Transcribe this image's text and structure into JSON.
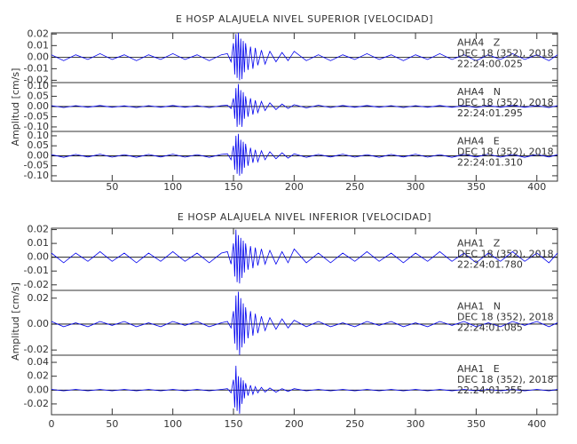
{
  "chart_data": [
    {
      "type": "line",
      "title": "E HOSP ALAJUELA NIVEL SUPERIOR [VELOCIDAD]",
      "y_label": "Amplitud [cm/s]",
      "xlim": [
        0,
        417
      ],
      "xticks": [
        50,
        100,
        150,
        200,
        250,
        300,
        350,
        400
      ],
      "x": [
        0,
        10,
        20,
        30,
        40,
        50,
        60,
        70,
        80,
        90,
        100,
        110,
        120,
        130,
        140,
        145,
        148,
        150,
        151,
        152,
        153,
        154,
        155,
        156,
        157,
        158,
        159,
        160,
        162,
        164,
        166,
        168,
        170,
        173,
        176,
        180,
        185,
        190,
        195,
        200,
        210,
        220,
        230,
        240,
        250,
        260,
        270,
        280,
        290,
        300,
        310,
        320,
        330,
        340,
        350,
        360,
        370,
        380,
        390,
        400,
        410,
        417
      ],
      "series": [
        {
          "name": "AHA4   Z",
          "date": "DEC 18 (352), 2018",
          "time": "22:24:00.025",
          "color": "#0000ee",
          "ylim": [
            -0.022,
            0.021
          ],
          "yticks": [
            0.02,
            0.01,
            {
              "value": 0,
              "label": "0.00"
            },
            -0.01,
            -0.02
          ],
          "values": [
            0.002,
            -0.003,
            0.002,
            -0.002,
            0.003,
            -0.002,
            0.002,
            -0.003,
            0.002,
            -0.002,
            0.003,
            -0.002,
            0.002,
            -0.003,
            0.002,
            0.003,
            -0.004,
            0.012,
            -0.015,
            0.02,
            -0.018,
            0.021,
            -0.02,
            0.016,
            -0.019,
            0.014,
            -0.013,
            0.012,
            -0.011,
            0.009,
            -0.01,
            0.008,
            -0.007,
            0.006,
            -0.006,
            0.005,
            -0.004,
            0.004,
            -0.003,
            0.005,
            -0.003,
            0.002,
            -0.003,
            0.002,
            -0.002,
            0.003,
            -0.002,
            0.002,
            -0.003,
            0.002,
            -0.002,
            0.003,
            -0.002,
            0.002,
            -0.003,
            0.002,
            -0.002,
            0.003,
            -0.002,
            0.002,
            -0.003,
            0.002
          ]
        },
        {
          "name": "AHA4   N",
          "date": "DEC 18 (352), 2018",
          "time": "22:24:01.295",
          "color": "#0000ee",
          "ylim": [
            -0.122,
            0.117
          ],
          "yticks": [
            {
              "value": 0.1,
              "label": "0.10"
            },
            0.05,
            {
              "value": 0,
              "label": "0.00"
            },
            -0.05,
            {
              "value": -0.1,
              "label": "-0.10"
            }
          ],
          "values": [
            0.004,
            -0.005,
            0.004,
            -0.004,
            0.005,
            -0.004,
            0.003,
            -0.005,
            0.004,
            -0.004,
            0.005,
            -0.004,
            0.004,
            -0.005,
            0.004,
            0.006,
            -0.01,
            0.04,
            -0.06,
            0.09,
            -0.1,
            0.11,
            -0.09,
            0.08,
            -0.1,
            0.07,
            -0.06,
            0.05,
            -0.05,
            0.04,
            -0.04,
            0.03,
            -0.03,
            0.025,
            -0.02,
            0.018,
            -0.015,
            0.012,
            -0.01,
            0.009,
            -0.007,
            0.006,
            -0.005,
            0.005,
            -0.004,
            0.005,
            -0.004,
            0.004,
            -0.005,
            0.004,
            -0.004,
            0.005,
            -0.004,
            0.004,
            -0.005,
            0.004,
            -0.004,
            0.005,
            -0.004,
            0.004,
            -0.005,
            0.004
          ]
        },
        {
          "name": "AHA4   E",
          "date": "DEC 18 (352), 2018",
          "time": "22:24:01.310",
          "color": "#0000ee",
          "ylim": [
            -0.127,
            0.122
          ],
          "yticks": [
            {
              "value": 0.1,
              "label": "0.10"
            },
            0.05,
            {
              "value": 0,
              "label": "0.00"
            },
            -0.05,
            {
              "value": -0.1,
              "label": "-0.10"
            }
          ],
          "values": [
            0.006,
            -0.008,
            0.007,
            -0.006,
            0.008,
            -0.007,
            0.006,
            -0.008,
            0.007,
            -0.006,
            0.008,
            -0.007,
            0.006,
            -0.008,
            0.007,
            0.01,
            -0.02,
            0.05,
            -0.07,
            0.1,
            -0.09,
            0.11,
            -0.1,
            0.08,
            -0.09,
            0.07,
            -0.06,
            0.06,
            -0.05,
            0.04,
            -0.035,
            0.03,
            -0.03,
            0.025,
            -0.02,
            0.02,
            -0.015,
            0.015,
            -0.012,
            0.01,
            -0.008,
            0.007,
            -0.006,
            0.008,
            -0.007,
            0.006,
            -0.008,
            0.007,
            -0.006,
            0.008,
            -0.007,
            0.006,
            -0.008,
            0.007,
            -0.006,
            0.008,
            -0.007,
            0.006,
            -0.008,
            0.007,
            -0.006,
            0.006
          ]
        }
      ]
    },
    {
      "type": "line",
      "title": "E HOSP ALAJUELA NIVEL INFERIOR [VELOCIDAD]",
      "y_label": "Amplitud [cm/s]",
      "xlim": [
        0,
        417
      ],
      "xticks": [
        0,
        50,
        100,
        150,
        200,
        250,
        300,
        350,
        400
      ],
      "x": [
        0,
        10,
        20,
        30,
        40,
        50,
        60,
        70,
        80,
        90,
        100,
        110,
        120,
        130,
        140,
        145,
        148,
        150,
        151,
        152,
        153,
        154,
        155,
        156,
        157,
        158,
        159,
        160,
        162,
        164,
        166,
        168,
        170,
        173,
        176,
        180,
        185,
        190,
        195,
        200,
        210,
        220,
        230,
        240,
        250,
        260,
        270,
        280,
        290,
        300,
        310,
        320,
        330,
        340,
        350,
        360,
        370,
        380,
        390,
        400,
        410,
        417
      ],
      "series": [
        {
          "name": "AHA1   Z",
          "date": "DEC 18 (352), 2018",
          "time": "22:24:01.780",
          "color": "#0000ee",
          "ylim": [
            -0.024,
            0.021
          ],
          "yticks": [
            0.02,
            0.01,
            {
              "value": 0,
              "label": "0.00"
            },
            -0.01,
            -0.02
          ],
          "values": [
            0.003,
            -0.004,
            0.003,
            -0.003,
            0.004,
            -0.003,
            0.003,
            -0.004,
            0.003,
            -0.003,
            0.004,
            -0.003,
            0.003,
            -0.004,
            0.003,
            0.004,
            -0.005,
            0.01,
            -0.014,
            0.02,
            -0.018,
            0.016,
            -0.019,
            0.014,
            -0.015,
            0.012,
            -0.011,
            0.01,
            -0.009,
            0.008,
            -0.008,
            0.007,
            -0.006,
            0.006,
            -0.005,
            0.005,
            -0.005,
            0.004,
            -0.004,
            0.006,
            -0.004,
            0.003,
            -0.004,
            0.003,
            -0.003,
            0.004,
            -0.003,
            0.003,
            -0.004,
            0.003,
            -0.003,
            0.004,
            -0.003,
            0.003,
            -0.004,
            0.003,
            -0.003,
            0.004,
            -0.003,
            0.003,
            -0.004,
            0.003
          ]
        },
        {
          "name": "AHA1   N",
          "date": "DEC 18 (352), 2018",
          "time": "22:24:01.085",
          "color": "#0000ee",
          "ylim": [
            -0.024,
            0.026
          ],
          "yticks": [
            0.02,
            {
              "value": 0,
              "label": "0.00"
            },
            -0.02
          ],
          "values": [
            0.002,
            -0.002,
            0.001,
            -0.002,
            0.002,
            -0.001,
            0.002,
            -0.002,
            0.001,
            -0.002,
            0.002,
            -0.001,
            0.002,
            -0.002,
            0.001,
            0.002,
            -0.003,
            0.01,
            -0.015,
            0.022,
            -0.02,
            0.025,
            -0.024,
            0.02,
            -0.018,
            0.016,
            -0.015,
            0.013,
            -0.011,
            0.01,
            -0.009,
            0.008,
            -0.007,
            0.006,
            -0.005,
            0.005,
            -0.004,
            0.004,
            -0.003,
            0.003,
            -0.002,
            0.002,
            -0.002,
            0.001,
            -0.002,
            0.002,
            -0.001,
            0.002,
            -0.002,
            0.001,
            -0.002,
            0.002,
            -0.001,
            0.002,
            -0.002,
            0.001,
            -0.002,
            0.002,
            -0.001,
            0.002,
            -0.002,
            0.001
          ]
        },
        {
          "name": "AHA1   E",
          "date": "DEC 18 (352), 2018",
          "time": "22:24:01.355",
          "color": "#0000ee",
          "ylim": [
            -0.0355,
            0.0503
          ],
          "yticks": [
            0.04,
            0.02,
            {
              "value": 0,
              "label": "0.00"
            },
            -0.02
          ],
          "values": [
            0.001,
            -0.001,
            0.001,
            -0.001,
            0.001,
            -0.001,
            0.001,
            -0.001,
            0.001,
            -0.001,
            0.001,
            -0.001,
            0.001,
            -0.001,
            0.001,
            0.002,
            -0.004,
            0.015,
            -0.025,
            0.035,
            -0.03,
            0.02,
            -0.034,
            0.018,
            -0.02,
            0.014,
            -0.012,
            0.01,
            -0.008,
            0.007,
            -0.006,
            0.005,
            -0.004,
            0.004,
            -0.003,
            0.003,
            -0.003,
            0.002,
            -0.002,
            0.002,
            -0.001,
            0.001,
            -0.001,
            0.001,
            -0.001,
            0.001,
            -0.001,
            0.001,
            -0.001,
            0.001,
            -0.001,
            0.001,
            -0.001,
            0.001,
            -0.001,
            0.001,
            -0.001,
            0.001,
            -0.001,
            0.001,
            -0.001,
            0.001
          ]
        }
      ]
    }
  ]
}
